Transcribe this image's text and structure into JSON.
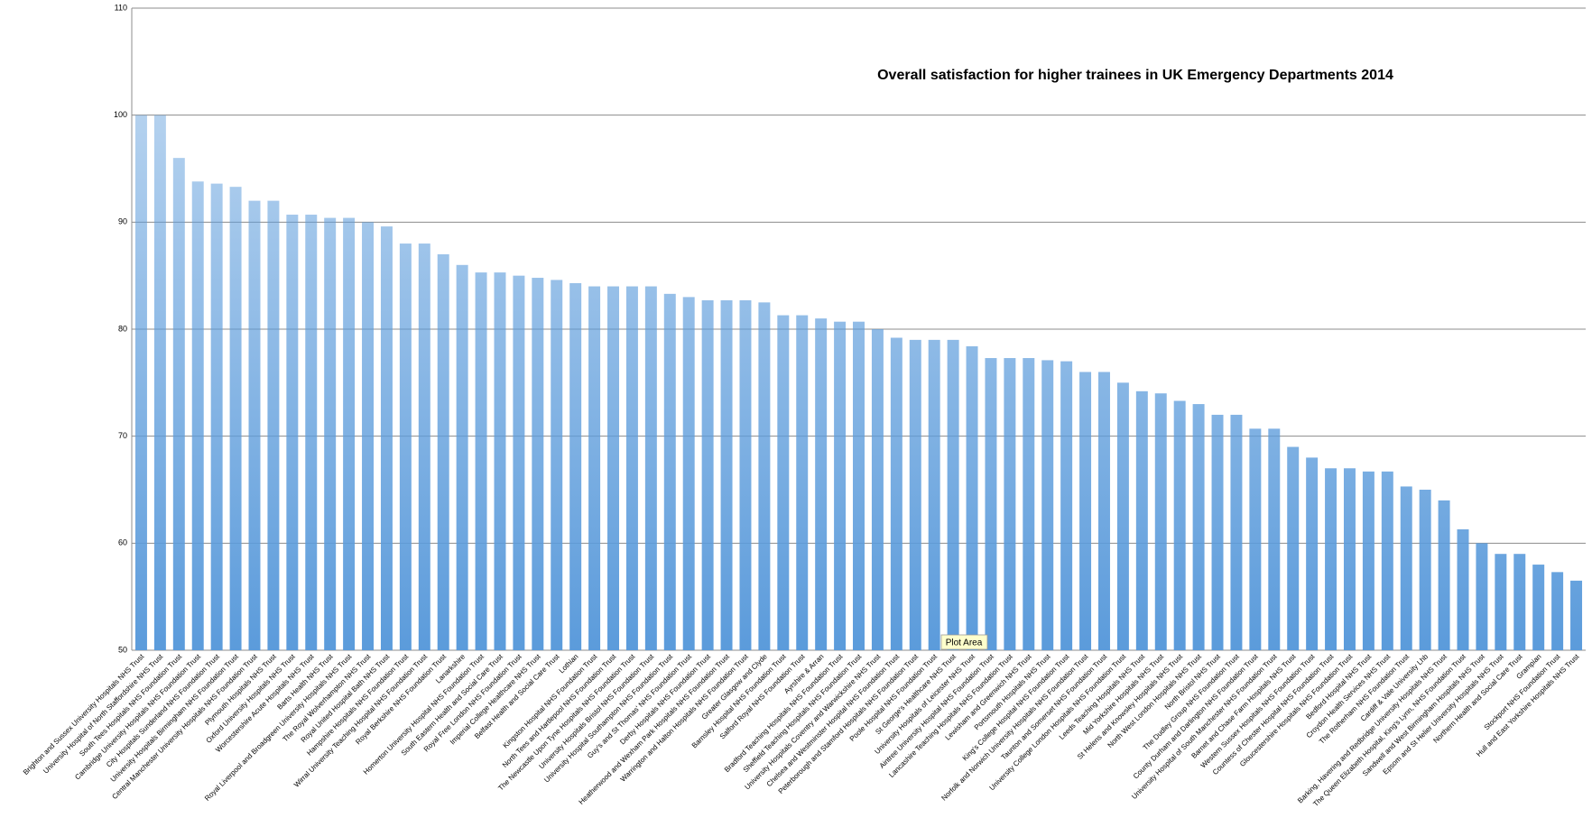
{
  "chart_data": {
    "type": "bar",
    "title": "Overall satisfaction for higher trainees in UK Emergency Departments 2014",
    "tooltip": "Plot Area",
    "color": "#5b9bdb",
    "grid": true,
    "ylim": [
      50,
      110
    ],
    "yticks": [
      50,
      60,
      70,
      80,
      90,
      100,
      110
    ],
    "categories": [
      "Brighton and Sussex University Hospitals NHS Trust",
      "University Hospital of North Staffordshire NHS Trust",
      "South Tees Hospitals NHS Foundation Trust",
      "Cambridge University Hospitals NHS Foundation Trust",
      "City Hospitals Sunderland NHS Foundation Trust",
      "University Hospitals Birmingham NHS Foundation Trust",
      "Central Manchester University Hospitals NHS Foundation Trust",
      "Plymouth Hospitals NHS Trust",
      "Oxford University Hospitals NHS Trust",
      "Worcestershire Acute Hospitals NHS Trust",
      "Barts Health NHS Trust",
      "Royal Liverpool and Broadgreen University Hospitals NHS Trust",
      "The Royal Wolverhampton NHS Trust",
      "Royal United Hospital Bath NHS Trust",
      "Hampshire Hospitals NHS Foundation Trust",
      "Wirral University Teaching Hospital NHS Foundation Trust",
      "Royal Berkshire NHS Foundation Trust",
      "Lanarkshire",
      "Homerton University Hospital NHS Foundation Trust",
      "South Eastern Health and Social Care Trust",
      "Royal Free London NHS Foundation Trust",
      "Imperial College Healthcare NHS Trust",
      "Belfast Health and Social Care Trust",
      "Lothian",
      "Kingston Hospital NHS Foundation Trust",
      "North Tees and Hartlepool NHS Foundation Trust",
      "The Newcastle Upon Tyne Hospitals NHS Foundation Trust",
      "University Hospitals Bristol NHS Foundation Trust",
      "University Hospital Southampton NHS Foundation Trust",
      "Guy's and St Thomas' NHS Foundation Trust",
      "Derby Hospitals NHS Foundation Trust",
      "Heatherwood and Wexham Park Hospitals NHS Foundation Trust",
      "Warrington and Halton Hospitals NHS Foundation Trust",
      "Greater Glasgow and Clyde",
      "Barnsley Hospital NHS Foundation Trust",
      "Salford Royal NHS Foundation Trust",
      "Ayrshire & Arran",
      "Bradford Teaching Hospitals NHS Foundation Trust",
      "Sheffield Teaching Hospitals NHS Foundation Trust",
      "University Hospitals Coventry and Warwickshire NHS Trust",
      "Chelsea and Westminster Hospital NHS Foundation Trust",
      "Peterborough and Stamford Hospitals NHS Foundation Trust",
      "Poole Hospital NHS Foundation Trust",
      "St George's Healthcare NHS Trust",
      "University Hospitals of Leicester NHS Trust",
      "Aintree University Hospital NHS Foundation Trust",
      "Lancashire Teaching Hospitals NHS Foundation Trust",
      "Lewisham and Greenwich NHS Trust",
      "Portsmouth Hospitals NHS Trust",
      "King's College Hospital NHS Foundation Trust",
      "Norfolk and Norwich University Hospitals NHS Foundation Trust",
      "Taunton and Somerset NHS Foundation Trust",
      "University College London Hospitals NHS Foundation Trust",
      "Leeds Teaching Hospitals NHS Trust",
      "Mid Yorkshire Hospitals NHS Trust",
      "St Helens and Knowsley Hospitals NHS Trust",
      "North West London Hospitals NHS Trust",
      "North Bristol NHS Trust",
      "The Dudley Group NHS Foundation Trust",
      "County Durham and Darlington NHS Foundation Trust",
      "University Hospital of South Manchester NHS Foundation Trust",
      "Barnet and Chase Farm Hospitals NHS Trust",
      "Western Sussex Hospitals NHS Foundation Trust",
      "Countess of Chester Hospital NHS Foundation Trust",
      "Gloucestershire Hospitals NHS Foundation Trust",
      "Bedford Hospital NHS Trust",
      "Croydon Health Services NHS Trust",
      "The Rotherham NHS Foundation Trust",
      "Cardiff & Vale University Lhb",
      "Barking, Havering and Redbridge University Hospitals NHS Trust",
      "The Queen Elizabeth Hospital, King's Lynn, NHS Foundation Trust",
      "Sandwell and West Birmingham Hospitals NHS Trust",
      "Epsom and St Helier University Hospitals NHS Trust",
      "Northern Health and Social Care Trust",
      "Grampian",
      "Stockport NHS Foundation Trust",
      "Hull and East Yorkshire Hospitals NHS Trust"
    ],
    "values": [
      100,
      100,
      96,
      93.8,
      93.6,
      93.3,
      92,
      92,
      90.7,
      90.7,
      90.4,
      90.4,
      90,
      89.6,
      88,
      88,
      87,
      86,
      85.3,
      85.3,
      85,
      84.8,
      84.6,
      84.3,
      84,
      84,
      84,
      84,
      83.3,
      83,
      82.7,
      82.7,
      82.7,
      82.5,
      81.3,
      81.3,
      81,
      80.7,
      80.7,
      80,
      79.2,
      79,
      79,
      79,
      78.4,
      77.3,
      77.3,
      77.3,
      77.1,
      77,
      76,
      76,
      75,
      74.2,
      74,
      73.3,
      73,
      72,
      72,
      70.7,
      70.7,
      69,
      68,
      67,
      67,
      66.7,
      66.7,
      65.3,
      65,
      64,
      61.3,
      60,
      59,
      59,
      58,
      57.3,
      56.5
    ]
  }
}
